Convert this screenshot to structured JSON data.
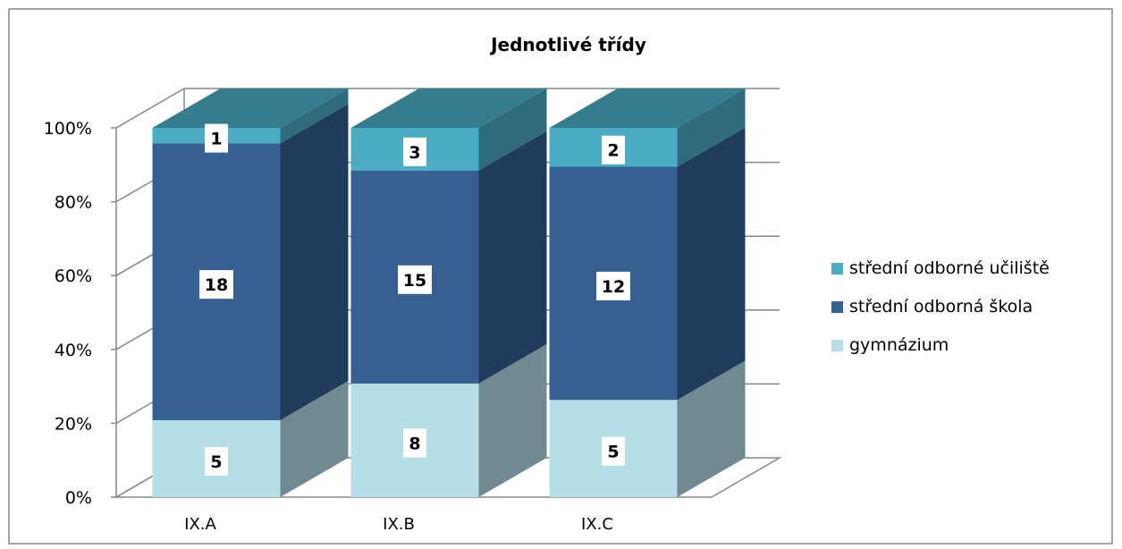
{
  "chart_data": {
    "type": "bar",
    "stacked": "percent",
    "projection": "3d",
    "title": "Jednotlivé třídy",
    "xlabel": "",
    "ylabel": "",
    "categories": [
      "IX.A",
      "IX.B",
      "IX.C"
    ],
    "y_ticks": [
      "0%",
      "20%",
      "40%",
      "60%",
      "80%",
      "100%"
    ],
    "ylim": [
      0,
      100
    ],
    "grid": true,
    "legend_position": "right",
    "series": [
      {
        "name": "gymnázium",
        "values": [
          5,
          8,
          5
        ],
        "color": "#b7dde8"
      },
      {
        "name": "střední odborná škola",
        "values": [
          18,
          15,
          12
        ],
        "color": "#366092"
      },
      {
        "name": "střední odborné učiliště",
        "values": [
          1,
          3,
          2
        ],
        "color": "#4bacc6"
      }
    ]
  }
}
